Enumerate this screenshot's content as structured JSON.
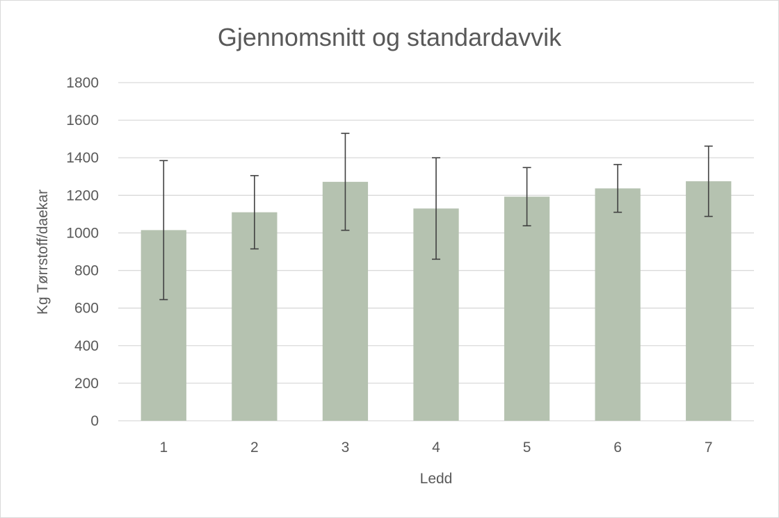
{
  "chart_data": {
    "type": "bar",
    "title": "Gjennomsnitt og standardavvik",
    "xlabel": "Ledd",
    "ylabel": "Kg Tørrstoff/daekar",
    "categories": [
      "1",
      "2",
      "3",
      "4",
      "5",
      "6",
      "7"
    ],
    "values": [
      1015,
      1110,
      1272,
      1130,
      1193,
      1237,
      1275
    ],
    "error": [
      370,
      195,
      258,
      270,
      155,
      127,
      187
    ],
    "ylim": [
      0,
      1800
    ],
    "yticks": [
      "0",
      "200",
      "400",
      "600",
      "800",
      "1000",
      "1200",
      "1400",
      "1600",
      "1800"
    ],
    "grid": true,
    "legend": "none",
    "colors": {
      "bar": "#b5c2b0",
      "error_bar": "#404040",
      "grid": "#d9d9d9",
      "text": "#595959"
    }
  }
}
